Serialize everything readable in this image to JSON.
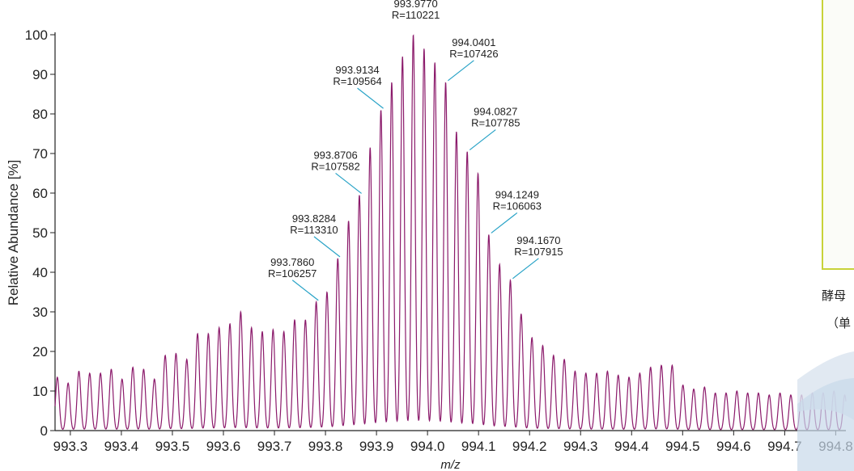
{
  "chart_data": {
    "type": "line",
    "title": "",
    "xlabel": "m/z",
    "ylabel": "Relative Abundance [%]",
    "xlim": [
      993.27,
      994.82
    ],
    "ylim": [
      0,
      100
    ],
    "x_ticks": [
      "993.3",
      "993.4",
      "993.5",
      "993.6",
      "993.7",
      "993.8",
      "993.9",
      "994.0",
      "994.1",
      "994.2",
      "994.3",
      "994.4",
      "994.5",
      "994.6",
      "994.7",
      "994.8"
    ],
    "y_ticks": [
      "0",
      "10",
      "20",
      "30",
      "40",
      "50",
      "60",
      "70",
      "80",
      "90",
      "100"
    ],
    "line_color": "#8b1a6b",
    "peak_spacing": 0.02114,
    "peaks_start": 993.2745,
    "peaks": [
      13.5,
      12,
      15,
      14.5,
      14.5,
      15.5,
      13,
      16,
      15.5,
      13,
      19,
      19.5,
      18,
      24.5,
      24.5,
      26,
      27,
      30,
      26,
      25,
      25.5,
      25,
      28,
      28,
      32.5,
      35,
      43.5,
      53,
      59.5,
      71.5,
      81,
      88,
      94.5,
      100,
      96.5,
      93,
      88,
      75.5,
      70.5,
      65,
      49.5,
      42,
      38,
      29.5,
      23.5,
      21.5,
      19,
      18,
      15,
      14.5,
      14.5,
      15,
      14,
      13.5,
      14.5,
      16,
      16.5,
      16.5,
      11.5,
      10.5,
      11,
      9.5,
      9.5,
      10,
      9.5,
      9.5,
      9,
      9.5,
      9,
      9,
      9.5,
      9.5,
      10,
      9,
      8.5,
      8.5,
      8.5,
      3
    ],
    "annotations": [
      {
        "mz": "993.7860",
        "r": "R=106257",
        "x": 993.786,
        "y": 32.5
      },
      {
        "mz": "993.8284",
        "r": "R=113310",
        "x": 993.8284,
        "y": 43.5
      },
      {
        "mz": "993.8706",
        "r": "R=107582",
        "x": 993.8706,
        "y": 59.5
      },
      {
        "mz": "993.9134",
        "r": "R=109564",
        "x": 993.9134,
        "y": 81
      },
      {
        "mz": "993.9770",
        "r": "R=110221",
        "x": 993.977,
        "y": 100
      },
      {
        "mz": "994.0401",
        "r": "R=107426",
        "x": 994.0401,
        "y": 88
      },
      {
        "mz": "994.0827",
        "r": "R=107785",
        "x": 994.0827,
        "y": 70.5
      },
      {
        "mz": "994.1249",
        "r": "R=106063",
        "x": 994.1249,
        "y": 49.5
      },
      {
        "mz": "994.1670",
        "r": "R=107915",
        "x": 994.167,
        "y": 38
      }
    ]
  },
  "side_panel": {
    "line1": "酵母",
    "line2": "（单"
  }
}
